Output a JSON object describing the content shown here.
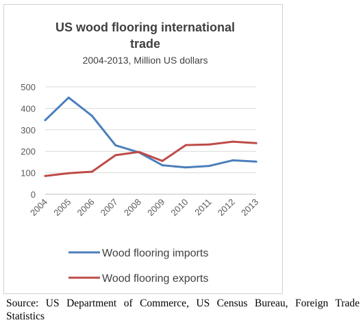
{
  "chart_data": {
    "type": "line",
    "title_lines": [
      "US wood flooring international",
      "trade"
    ],
    "subtitle": "2004-2013, Million US dollars",
    "categories": [
      "2004",
      "2005",
      "2006",
      "2007",
      "2008",
      "2009",
      "2010",
      "2011",
      "2012",
      "2013"
    ],
    "series": [
      {
        "name": "Wood flooring imports",
        "color": "#4a7ebb",
        "values": [
          345,
          450,
          365,
          228,
          195,
          135,
          125,
          132,
          158,
          152
        ]
      },
      {
        "name": "Wood flooring exports",
        "color": "#be4b48",
        "values": [
          85,
          98,
          105,
          182,
          197,
          155,
          229,
          232,
          245,
          238
        ]
      }
    ],
    "y_ticks": [
      "0",
      "100",
      "200",
      "300",
      "400",
      "500"
    ],
    "ylim": [
      0,
      500
    ],
    "grid": true,
    "legend_position": "bottom"
  },
  "source_note": "Source: US Department of Commerce, US Census Bureau, Foreign Trade Statistics"
}
